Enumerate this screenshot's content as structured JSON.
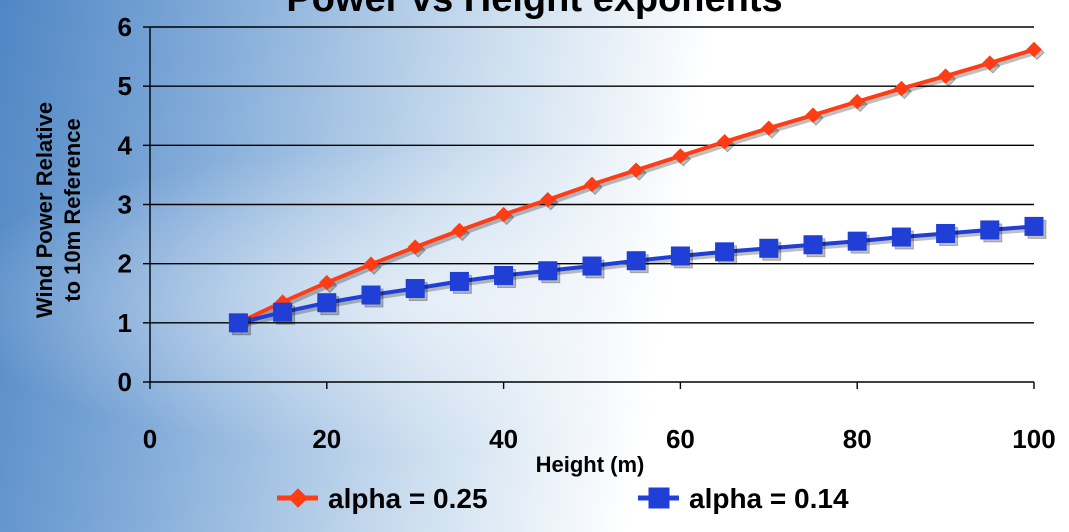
{
  "chart_data": {
    "type": "line",
    "title": "",
    "title_partial_visible": "Power vs Height exponents",
    "xlabel": "Height (m)",
    "ylabel_lines": [
      "Wind Power Relative",
      "to 10m Reference"
    ],
    "xlim": [
      0,
      100
    ],
    "ylim": [
      0,
      6
    ],
    "x_ticks": [
      0,
      20,
      40,
      60,
      80,
      100
    ],
    "y_ticks": [
      0,
      1,
      2,
      3,
      4,
      5,
      6
    ],
    "grid": "horizontal",
    "legend_position": "bottom",
    "x": [
      10,
      15,
      20,
      25,
      30,
      35,
      40,
      45,
      50,
      55,
      60,
      65,
      70,
      75,
      80,
      85,
      90,
      95,
      100
    ],
    "series": [
      {
        "name": "alpha = 0.25",
        "color": "#ff3c14",
        "marker": "diamond",
        "values": [
          1.0,
          1.35,
          1.68,
          1.99,
          2.28,
          2.56,
          2.83,
          3.08,
          3.34,
          3.58,
          3.82,
          4.06,
          4.29,
          4.51,
          4.74,
          4.96,
          5.17,
          5.39,
          5.62
        ]
      },
      {
        "name": "alpha = 0.14",
        "color": "#1f3fd6",
        "marker": "square",
        "values": [
          1.0,
          1.18,
          1.34,
          1.47,
          1.58,
          1.7,
          1.8,
          1.88,
          1.96,
          2.05,
          2.13,
          2.2,
          2.26,
          2.32,
          2.38,
          2.45,
          2.51,
          2.57,
          2.63
        ]
      }
    ]
  }
}
